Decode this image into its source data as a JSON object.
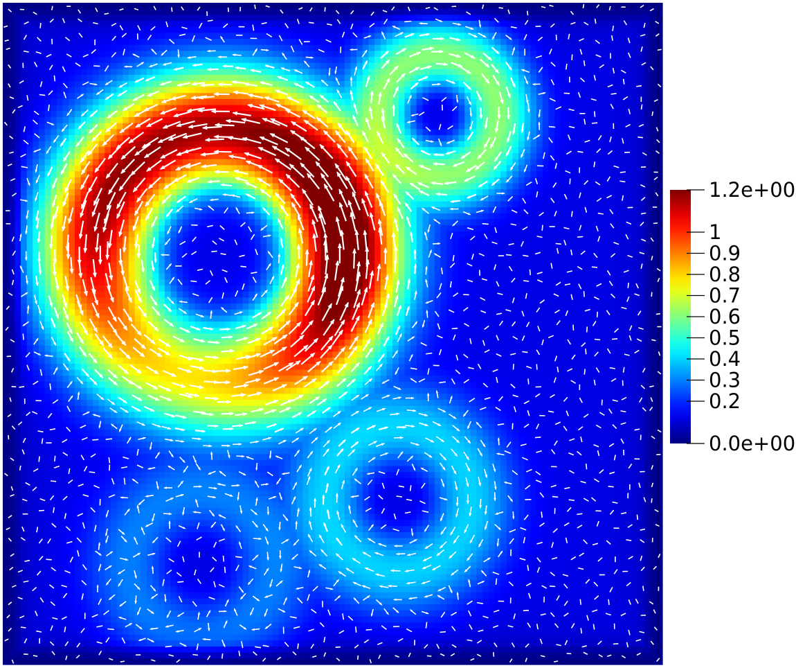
{
  "chart_data": {
    "type": "heatmap",
    "description_kind": "velocity-magnitude field with vector glyphs",
    "colormap": "jet",
    "colors": {
      "min": "#00007f",
      "max": "#7f0000",
      "glyph": "#ffffff"
    },
    "value_range": [
      0.0,
      1.2
    ],
    "colorbar": {
      "orientation": "vertical",
      "placement": "right",
      "tick_values": [
        1.2,
        1.0,
        0.9,
        0.8,
        0.7,
        0.6,
        0.5,
        0.4,
        0.3,
        0.2,
        0.0
      ],
      "tick_labels": [
        "1.2e+00",
        "1",
        "0.9",
        "0.8",
        "0.7",
        "0.6",
        "0.5",
        "0.4",
        "0.3",
        "0.2",
        "0.0e+00"
      ]
    },
    "domain_extent": {
      "x": [
        0,
        1
      ],
      "y": [
        0,
        1
      ]
    },
    "features": [
      {
        "kind": "vortex-ring",
        "center": [
          0.33,
          0.38
        ],
        "inner_radius": 0.05,
        "ring_radius": 0.19,
        "ring_width": 0.09,
        "peak": 1.2,
        "rotation": "counter-clockwise"
      },
      {
        "kind": "blob",
        "center": [
          0.66,
          0.17
        ],
        "radius": 0.1,
        "peak": 0.5
      },
      {
        "kind": "blob",
        "center": [
          0.6,
          0.75
        ],
        "radius": 0.12,
        "peak": 0.28
      },
      {
        "kind": "blob",
        "center": [
          0.3,
          0.85
        ],
        "radius": 0.12,
        "peak": 0.18
      }
    ]
  }
}
